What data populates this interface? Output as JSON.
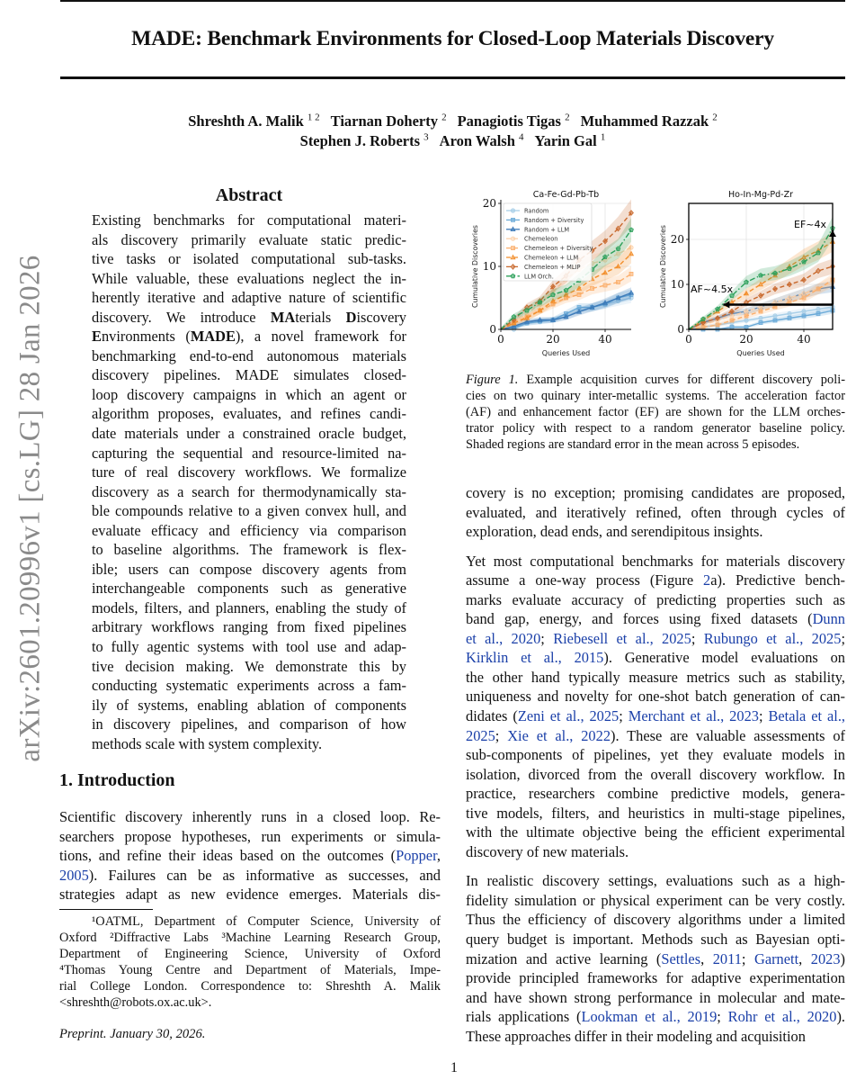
{
  "stamp": "arXiv:2601.20996v1  [cs.LG]  28 Jan 2026",
  "title": "MADE: Benchmark Environments for Closed-Loop Materials Discovery",
  "authors": [
    [
      {
        "name": "Shreshth A. Malik",
        "sup": "1 2"
      },
      {
        "name": "Tiarnan Doherty",
        "sup": "2"
      },
      {
        "name": "Panagiotis Tigas",
        "sup": "2"
      },
      {
        "name": "Muhammed Razzak",
        "sup": "2"
      }
    ],
    [
      {
        "name": "Stephen J. Roberts",
        "sup": "3"
      },
      {
        "name": "Aron Walsh",
        "sup": "4"
      },
      {
        "name": "Yarin Gal",
        "sup": "1"
      }
    ]
  ],
  "abstract": {
    "heading": "Abstract",
    "paragraphs": [
      [
        [
          "Existing benchmarks for computational materi-"
        ],
        [
          "als discovery primarily evaluate static predic-"
        ],
        [
          "tive tasks or isolated computational sub-tasks."
        ],
        [
          "While valuable, these evaluations neglect the in-"
        ],
        [
          "herently iterative and adaptive nature of scientific"
        ],
        [
          "discovery.  We introduce ",
          {
            "b": "MA"
          },
          "terials ",
          {
            "b": "D"
          },
          "iscovery"
        ],
        [
          {
            "b": "E"
          },
          "nvironments (",
          {
            "b": "MADE"
          },
          "), a novel framework for"
        ],
        [
          "benchmarking end-to-end autonomous materials"
        ],
        [
          "discovery pipelines.  MADE simulates closed-"
        ],
        [
          "loop discovery campaigns in which an agent or"
        ],
        [
          "algorithm proposes, evaluates, and refines candi-"
        ],
        [
          "date materials under a constrained oracle budget,"
        ],
        [
          "capturing the sequential and resource-limited na-"
        ],
        [
          "ture of real discovery workflows.  We formalize"
        ],
        [
          "discovery as a search for thermodynamically sta-"
        ],
        [
          "ble compounds relative to a given convex hull, and"
        ],
        [
          "evaluate efficacy and efficiency via comparison"
        ],
        [
          "to baseline algorithms.  The framework is flex-"
        ],
        [
          "ible; users can compose discovery agents from"
        ],
        [
          "interchangeable components such as generative"
        ],
        [
          "models, filters, and planners, enabling the study of"
        ],
        [
          "arbitrary workflows ranging from fixed pipelines"
        ],
        [
          "to fully agentic systems with tool use and adap-"
        ],
        [
          "tive decision making.  We demonstrate this by"
        ],
        [
          "conducting systematic experiments across a fam-"
        ],
        [
          "ily of systems, enabling ablation of components"
        ],
        [
          "in discovery pipelines, and comparison of how"
        ],
        [
          "methods scale with system complexity."
        ]
      ]
    ]
  },
  "intro": {
    "heading": "1. Introduction",
    "paragraphs": [
      [
        [
          "Scientific discovery inherently runs in a closed loop.  Re-"
        ],
        [
          "searchers propose hypotheses, run experiments or simula-"
        ],
        [
          "tions, and refine their ideas based on the outcomes (",
          {
            "link": "Popper"
          },
          ","
        ],
        [
          {
            "link": "2005"
          },
          ").  Failures can be as informative as successes, and"
        ],
        [
          "strategies adapt as new evidence emerges.  Materials dis-"
        ]
      ]
    ]
  },
  "footnote": {
    "paragraphs": [
      [
        [
          "   ¹OATML, Department of Computer Science, University of"
        ],
        [
          "Oxford ²Diffractive Labs ³Machine Learning Research Group,"
        ],
        [
          "Department of Engineering Science, University of Oxford"
        ],
        [
          "⁴Thomas Young Centre and Department of Materials, Impe-"
        ],
        [
          "rial College London.  Correspondence to: Shreshth A. Malik"
        ],
        [
          "<shreshth@robots.ox.ac.uk>."
        ]
      ]
    ],
    "preprint": "Preprint. January 30, 2026."
  },
  "caption": {
    "paragraphs": [
      [
        [
          {
            "i": "Figure 1."
          },
          " Example acquisition curves for different discovery poli-"
        ],
        [
          "cies on two quinary inter-metallic systems. The acceleration factor"
        ],
        [
          "(AF) and enhancement factor (EF) are shown for the LLM orches-"
        ],
        [
          "trator policy with respect to a random generator baseline policy."
        ],
        [
          "Shaded regions are standard error in the mean across 5 episodes."
        ]
      ]
    ]
  },
  "right": {
    "paragraphs": [
      [
        [
          "covery is no exception; promising candidates are proposed,"
        ],
        [
          "evaluated, and iteratively refined, often through cycles of"
        ],
        [
          "exploration, dead ends, and serendipitous insights."
        ]
      ],
      [
        [
          "Yet most computational benchmarks for materials discovery"
        ],
        [
          "assume a one-way process (Figure ",
          {
            "link": "2"
          },
          "a).  Predictive bench-"
        ],
        [
          "marks evaluate accuracy of predicting properties such as"
        ],
        [
          "band gap, energy, and forces using fixed datasets (",
          {
            "link": "Dunn"
          }
        ],
        [
          {
            "link": "et al., 2020"
          },
          "; ",
          {
            "link": "Riebesell et al., 2025"
          },
          "; ",
          {
            "link": "Rubungo et al., 2025"
          },
          ";"
        ],
        [
          {
            "link": "Kirklin et al., 2015"
          },
          ").   Generative model evaluations on"
        ],
        [
          "the other hand typically measure metrics such as stability,"
        ],
        [
          "uniqueness and novelty for one-shot batch generation of can-"
        ],
        [
          "didates (",
          {
            "link": "Zeni et al., 2025"
          },
          "; ",
          {
            "link": "Merchant et al., 2023"
          },
          "; ",
          {
            "link": "Betala et al.,"
          }
        ],
        [
          {
            "link": "2025"
          },
          "; ",
          {
            "link": "Xie et al., 2022"
          },
          ").  These are valuable assessments of"
        ],
        [
          "sub-components of pipelines, yet they evaluate models in"
        ],
        [
          "isolation, divorced from the overall discovery workflow. In"
        ],
        [
          "practice, researchers combine predictive models, genera-"
        ],
        [
          "tive models, filters, and heuristics in multi-stage pipelines,"
        ],
        [
          "with the ultimate objective being the efficient experimental"
        ],
        [
          "discovery of new materials."
        ]
      ],
      [
        [
          "In realistic discovery settings, evaluations such as a high-"
        ],
        [
          "fidelity simulation or physical experiment can be very costly."
        ],
        [
          "Thus the efficiency of discovery algorithms under a limited"
        ],
        [
          "query budget is important. Methods such as Bayesian opti-"
        ],
        [
          "mization and active learning (",
          {
            "link": "Settles"
          },
          ", ",
          {
            "link": "2011"
          },
          "; ",
          {
            "link": "Garnett"
          },
          ", ",
          {
            "link": "2023"
          },
          ")"
        ],
        [
          "provide principled frameworks for adaptive experimentation"
        ],
        [
          "and have shown strong performance in molecular and mate-"
        ],
        [
          "rials applications (",
          {
            "link": "Lookman et al., 2019"
          },
          "; ",
          {
            "link": "Rohr et al., 2020"
          },
          ")."
        ],
        [
          "These approaches differ in their modeling and acquisition"
        ]
      ]
    ]
  },
  "page_number": "1",
  "colors": {
    "link": "#1a3fa8",
    "stamp": "#8a8a8a"
  },
  "chart_data": [
    {
      "type": "line",
      "title": "Ca-Fe-Gd-Pb-Tb",
      "xlabel": "Queries Used",
      "ylabel": "Cumulative Discoveries",
      "xlim": [
        0,
        50
      ],
      "ylim": [
        0,
        20
      ],
      "xticks": [
        0,
        20,
        40
      ],
      "yticks": [
        0,
        10,
        20
      ],
      "grid": true,
      "legend": "top-left",
      "x": [
        0,
        5,
        10,
        15,
        20,
        25,
        30,
        35,
        40,
        45,
        50
      ],
      "series": [
        {
          "name": "Random",
          "color": "#a9cfe8",
          "marker": "circle",
          "dash": "solid",
          "values": [
            0,
            0,
            1,
            1.2,
            1.5,
            2,
            3,
            3.5,
            4,
            4.5,
            5
          ]
        },
        {
          "name": "Random + Diversity",
          "color": "#6aaad8",
          "marker": "square",
          "dash": "solid",
          "values": [
            0,
            0.3,
            1,
            1.3,
            1.5,
            2.5,
            3.5,
            3.5,
            4,
            5,
            5.5
          ]
        },
        {
          "name": "Random + LLM",
          "color": "#3b79b8",
          "marker": "triangle",
          "dash": "solid",
          "values": [
            0,
            0.5,
            1.2,
            1.5,
            1.5,
            2,
            2.8,
            3.5,
            4.2,
            5,
            5.8
          ]
        },
        {
          "name": "Chemeleon",
          "color": "#fcd3ad",
          "marker": "circle",
          "dash": "dashed",
          "values": [
            0,
            1.2,
            2.5,
            4,
            6,
            8,
            9.5,
            10.5,
            11,
            12,
            13
          ]
        },
        {
          "name": "Chemeleon + Diversity",
          "color": "#fbae6b",
          "marker": "square",
          "dash": "dashed",
          "values": [
            0,
            1,
            2,
            3,
            4,
            5,
            5.5,
            6.5,
            7,
            7.5,
            8.8
          ]
        },
        {
          "name": "Chemeleon + LLM",
          "color": "#f28e2b",
          "marker": "triangle",
          "dash": "dashed",
          "values": [
            0,
            1,
            1.8,
            3,
            4.5,
            5.5,
            6.5,
            8,
            9,
            10,
            12
          ]
        },
        {
          "name": "Chemeleon + MLIP",
          "color": "#c8682c",
          "marker": "diamond",
          "dash": "dashed",
          "values": [
            0,
            1.5,
            3.5,
            4.5,
            6.8,
            8.5,
            11,
            12.5,
            14,
            16,
            18.5
          ]
        },
        {
          "name": "LLM Orch.",
          "color": "#2ca05a",
          "marker": "pentagon",
          "dash": "dashdot",
          "values": [
            0,
            2,
            3,
            4.3,
            5.5,
            6.2,
            7.8,
            9.5,
            11.5,
            12.8,
            15.8
          ]
        }
      ],
      "annotations": []
    },
    {
      "type": "line",
      "title": "Ho-In-Mg-Pd-Zr",
      "xlabel": "Queries Used",
      "ylabel": "Cumulative Discoveries",
      "xlim": [
        0,
        50
      ],
      "ylim": [
        0,
        28
      ],
      "xticks": [
        0,
        20,
        40
      ],
      "yticks": [
        0,
        10,
        20
      ],
      "grid": true,
      "x": [
        0,
        5,
        10,
        15,
        20,
        25,
        30,
        35,
        40,
        45,
        50
      ],
      "series": [
        {
          "name": "Random",
          "color": "#a9cfe8",
          "marker": "circle",
          "dash": "solid",
          "values": [
            0,
            0.5,
            1,
            1.5,
            2,
            2.5,
            3,
            3.5,
            4,
            4.5,
            5
          ]
        },
        {
          "name": "Random + Diversity",
          "color": "#6aaad8",
          "marker": "square",
          "dash": "solid",
          "values": [
            0,
            0,
            0,
            0.5,
            0.5,
            1.5,
            2,
            2.5,
            3,
            3.5,
            4.2
          ]
        },
        {
          "name": "Random + LLM",
          "color": "#3b79b8",
          "marker": "triangle",
          "dash": "solid",
          "values": [
            0,
            1.5,
            2.5,
            3.5,
            4,
            5,
            6,
            7,
            8,
            9,
            9.5
          ]
        },
        {
          "name": "Chemeleon",
          "color": "#fcd3ad",
          "marker": "circle",
          "dash": "dashed",
          "values": [
            0,
            1,
            2,
            3,
            4,
            5,
            6,
            7,
            8,
            9,
            10.5
          ]
        },
        {
          "name": "Chemeleon + Diversity",
          "color": "#fbae6b",
          "marker": "square",
          "dash": "dashed",
          "values": [
            0,
            0.5,
            1,
            2,
            3,
            4,
            5,
            6,
            7,
            9,
            11
          ]
        },
        {
          "name": "Chemeleon + LLM",
          "color": "#f28e2b",
          "marker": "triangle",
          "dash": "dashed",
          "values": [
            0,
            2,
            4,
            6,
            8,
            10,
            12,
            14,
            16,
            17.5,
            19.5
          ]
        },
        {
          "name": "Chemeleon + MLIP",
          "color": "#c8682c",
          "marker": "diamond",
          "dash": "dashed",
          "values": [
            0,
            1.5,
            2.5,
            4,
            6,
            7.5,
            9,
            10,
            11,
            13,
            14
          ]
        },
        {
          "name": "LLM Orch.",
          "color": "#2ca05a",
          "marker": "pentagon",
          "dash": "dashdot",
          "values": [
            0,
            2.3,
            4.5,
            7.5,
            10.5,
            12,
            12.5,
            13.5,
            15,
            17,
            22.5
          ]
        }
      ],
      "annotations": [
        {
          "text": "AF~4.5x",
          "arrow_from": [
            50,
            5.5
          ],
          "arrow_to": [
            12,
            5.5
          ]
        },
        {
          "text": "EF~4x",
          "arrow_from": [
            50,
            5.5
          ],
          "arrow_to": [
            50,
            22
          ]
        }
      ]
    }
  ]
}
